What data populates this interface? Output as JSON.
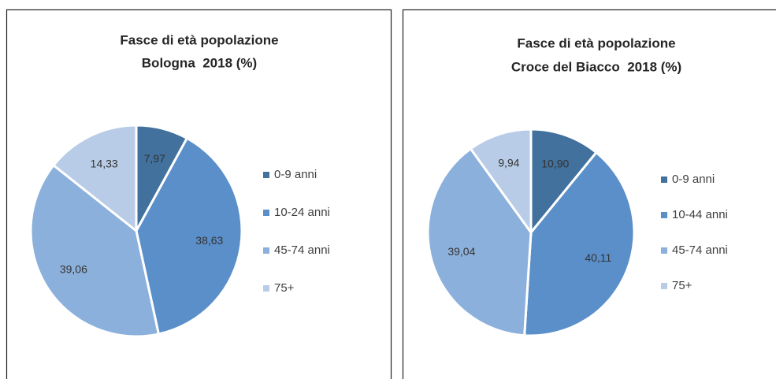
{
  "chart_data": [
    {
      "type": "pie",
      "title": "Fasce di età popolazione",
      "subtitle": "Bologna  2018 (%)",
      "categories": [
        "0-9 anni",
        "10-24 anni",
        "45-74 anni",
        "75+"
      ],
      "values": [
        7.97,
        38.63,
        39.06,
        14.33
      ],
      "value_labels": [
        "7,97",
        "38,63",
        "39,06",
        "14,33"
      ],
      "colors": [
        "#41719c",
        "#5b8fc9",
        "#8cb0dc",
        "#b8cce7"
      ]
    },
    {
      "type": "pie",
      "title": "Fasce di età popolazione",
      "subtitle": "Croce del Biacco  2018 (%)",
      "categories": [
        "0-9 anni",
        "10-44 anni",
        "45-74 anni",
        "75+"
      ],
      "values": [
        10.9,
        40.11,
        39.04,
        9.94
      ],
      "value_labels": [
        "10,90",
        "40,11",
        "39,04",
        "9,94"
      ],
      "colors": [
        "#41719c",
        "#5b8fc9",
        "#8cb0dc",
        "#b8cce7"
      ]
    }
  ]
}
